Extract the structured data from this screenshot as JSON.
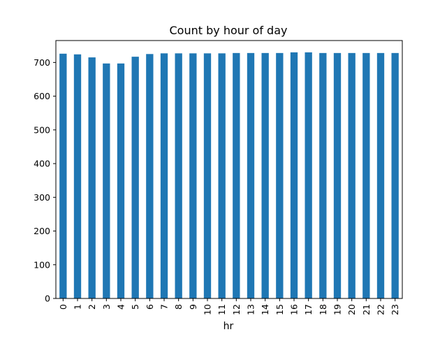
{
  "chart_data": {
    "type": "bar",
    "title": "Count by hour of day",
    "xlabel": "hr",
    "ylabel": "",
    "ylim": [
      0,
      765
    ],
    "yticks": [
      0,
      100,
      200,
      300,
      400,
      500,
      600,
      700
    ],
    "categories": [
      "0",
      "1",
      "2",
      "3",
      "4",
      "5",
      "6",
      "7",
      "8",
      "9",
      "10",
      "11",
      "12",
      "13",
      "14",
      "15",
      "16",
      "17",
      "18",
      "19",
      "20",
      "21",
      "22",
      "23"
    ],
    "values": [
      726,
      724,
      715,
      697,
      697,
      717,
      725,
      727,
      727,
      727,
      727,
      727,
      728,
      728,
      728,
      728,
      730,
      730,
      728,
      728,
      728,
      728,
      728,
      728
    ],
    "bar_color": "#1f77b4",
    "grid": false,
    "legend": "none"
  }
}
